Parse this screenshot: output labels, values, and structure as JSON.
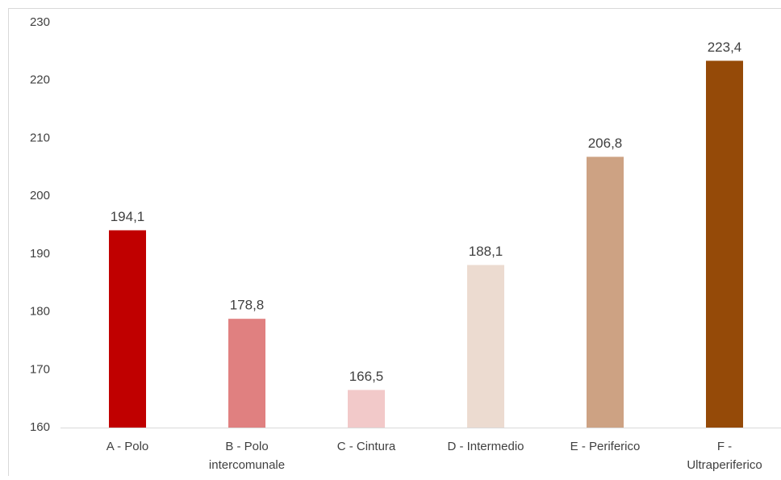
{
  "chart_data": {
    "type": "bar",
    "categories": [
      "A - Polo",
      "B - Polo intercomunale",
      "C - Cintura",
      "D - Intermedio",
      "E - Periferico",
      "F - Ultraperiferico"
    ],
    "values": [
      194.1,
      178.8,
      166.5,
      188.1,
      206.8,
      223.4
    ],
    "value_labels": [
      "194,1",
      "178,8",
      "166,5",
      "188,1",
      "206,8",
      "223,4"
    ],
    "colors": [
      "#c00000",
      "#e08080",
      "#f2c9c9",
      "#ecdbd0",
      "#cda283",
      "#954a08"
    ],
    "ylim": [
      160,
      230
    ],
    "yticks": [
      160,
      170,
      180,
      190,
      200,
      210,
      220,
      230
    ],
    "grid": false
  }
}
